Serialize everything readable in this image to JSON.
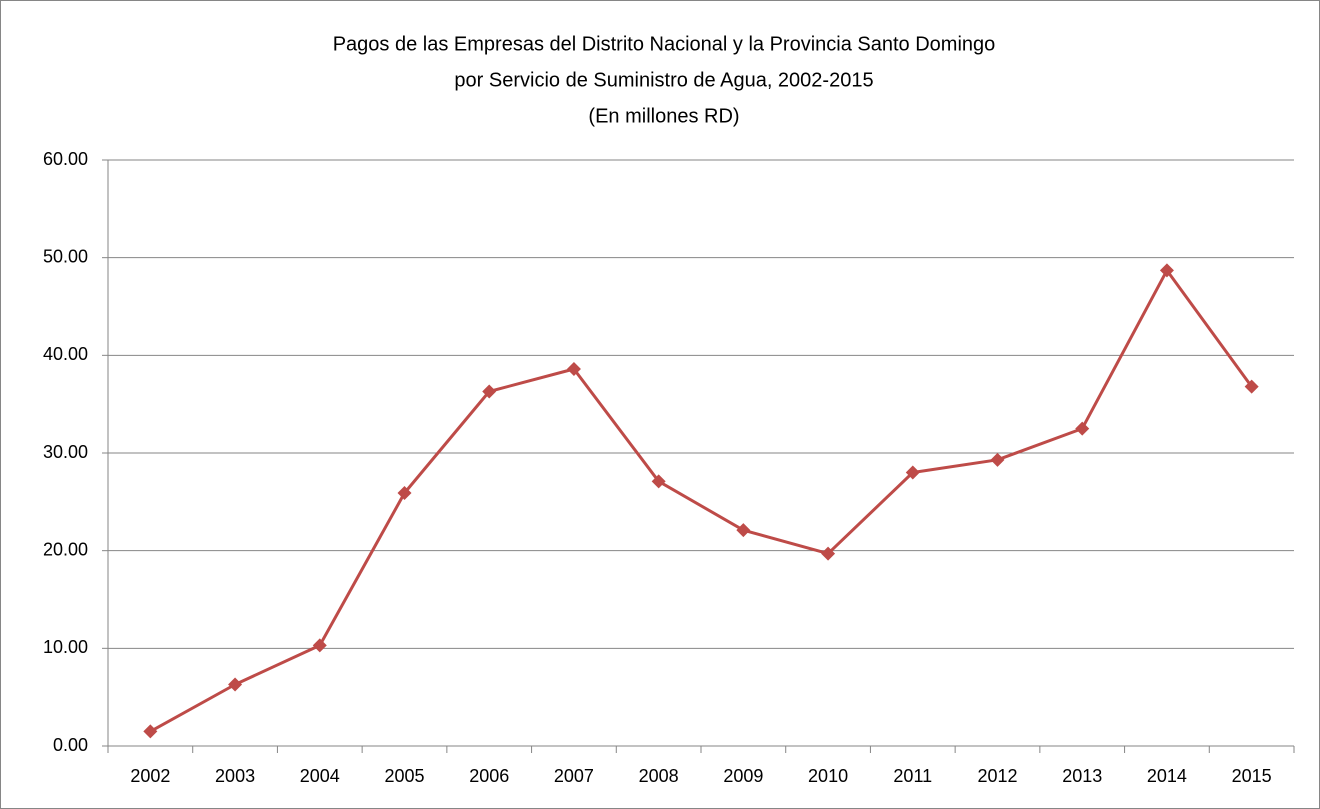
{
  "chart_data": {
    "type": "line",
    "title": [
      "Pagos de las Empresas del Distrito Nacional y la Provincia Santo Domingo",
      "por Servicio de Suministro de Agua, 2002-2015",
      "(En millones RD)"
    ],
    "categories": [
      "2002",
      "2003",
      "2004",
      "2005",
      "2006",
      "2007",
      "2008",
      "2009",
      "2010",
      "2011",
      "2012",
      "2013",
      "2014",
      "2015"
    ],
    "values": [
      1.5,
      6.3,
      10.3,
      25.9,
      36.3,
      38.6,
      27.1,
      22.1,
      19.7,
      28.0,
      29.3,
      32.5,
      48.7,
      36.8
    ],
    "color": "#be4b48",
    "ylim": [
      0,
      60
    ],
    "yticks": [
      {
        "value": 0,
        "label": "0.00"
      },
      {
        "value": 10,
        "label": "10.00"
      },
      {
        "value": 20,
        "label": "20.00"
      },
      {
        "value": 30,
        "label": "30.00"
      },
      {
        "value": 40,
        "label": "40.00"
      },
      {
        "value": 50,
        "label": "50.00"
      },
      {
        "value": 60,
        "label": "60.00"
      }
    ],
    "grid": true
  }
}
